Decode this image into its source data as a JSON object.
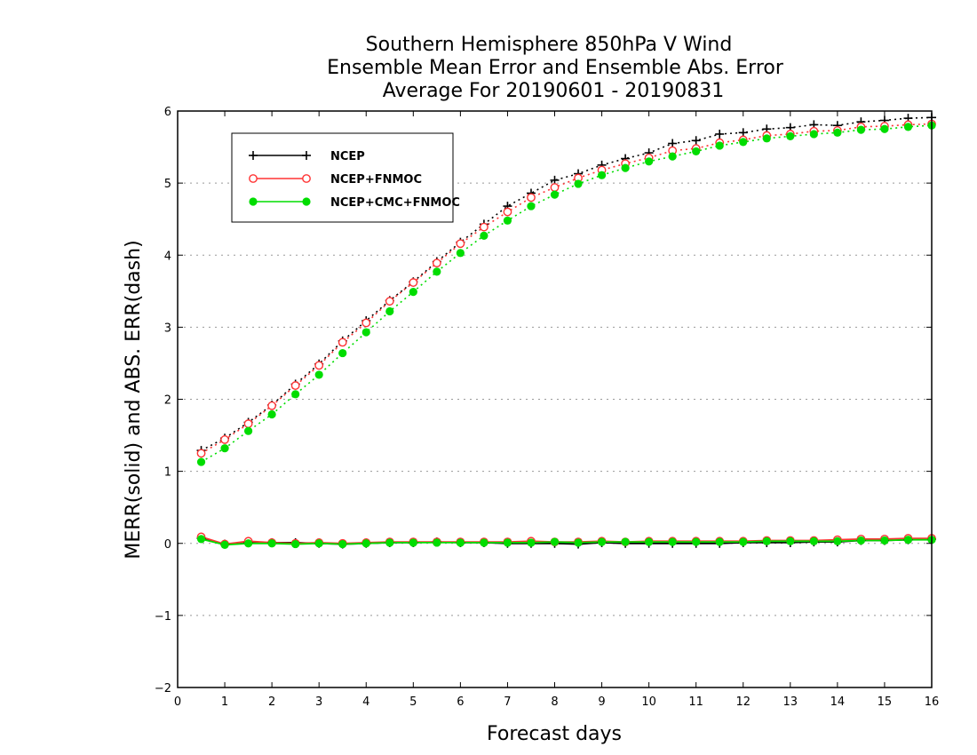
{
  "chart_data": {
    "type": "line",
    "title": [
      "Southern Hemisphere 850hPa V Wind",
      "Ensemble Mean Error and Ensemble Abs. Error",
      "Average For 20190601 - 20190831"
    ],
    "xlabel": "Forecast days",
    "ylabel": "MERR(solid) and ABS. ERR(dash)",
    "xlim": [
      0,
      16
    ],
    "ylim": [
      -2,
      6
    ],
    "xticks": [
      "0",
      "1",
      "2",
      "3",
      "4",
      "5",
      "6",
      "7",
      "8",
      "9",
      "10",
      "11",
      "12",
      "13",
      "14",
      "15",
      "16"
    ],
    "yticks": [
      "-2",
      "-1",
      "0",
      "1",
      "2",
      "3",
      "4",
      "5",
      "6"
    ],
    "grid": "horizontal dotted",
    "legend_position": "top-left",
    "x": [
      0.5,
      1,
      1.5,
      2,
      2.5,
      3,
      3.5,
      4,
      4.5,
      5,
      5.5,
      6,
      6.5,
      7,
      7.5,
      8,
      8.5,
      9,
      9.5,
      10,
      10.5,
      11,
      11.5,
      12,
      12.5,
      13,
      13.5,
      14,
      14.5,
      15,
      15.5,
      16
    ],
    "series": [
      {
        "name": "NCEP",
        "color": "#000000",
        "marker": "plus",
        "abs_err": [
          1.29,
          1.46,
          1.68,
          1.92,
          2.21,
          2.49,
          2.81,
          3.09,
          3.37,
          3.63,
          3.91,
          4.18,
          4.43,
          4.68,
          4.86,
          5.04,
          5.13,
          5.25,
          5.34,
          5.42,
          5.55,
          5.59,
          5.68,
          5.7,
          5.75,
          5.77,
          5.81,
          5.8,
          5.85,
          5.87,
          5.9,
          5.91
        ],
        "mean_err": [
          0.07,
          -0.01,
          0.01,
          0.01,
          0.01,
          0.0,
          -0.01,
          0.0,
          0.01,
          0.01,
          0.02,
          0.01,
          0.01,
          0.0,
          0.0,
          0.0,
          -0.01,
          0.01,
          0.0,
          0.0,
          0.0,
          0.0,
          0.0,
          0.01,
          0.01,
          0.01,
          0.02,
          0.02,
          0.04,
          0.04,
          0.05,
          0.06
        ]
      },
      {
        "name": "NCEP+FNMOC",
        "color": "#ff3333",
        "marker": "open-circle",
        "abs_err": [
          1.25,
          1.44,
          1.66,
          1.91,
          2.19,
          2.47,
          2.79,
          3.06,
          3.36,
          3.62,
          3.89,
          4.16,
          4.39,
          4.6,
          4.8,
          4.94,
          5.07,
          5.18,
          5.27,
          5.35,
          5.45,
          5.48,
          5.56,
          5.6,
          5.66,
          5.68,
          5.72,
          5.73,
          5.78,
          5.79,
          5.81,
          5.82
        ],
        "mean_err": [
          0.09,
          -0.01,
          0.03,
          0.01,
          0.0,
          0.01,
          0.0,
          0.01,
          0.02,
          0.02,
          0.02,
          0.02,
          0.02,
          0.02,
          0.03,
          0.02,
          0.02,
          0.03,
          0.02,
          0.03,
          0.03,
          0.03,
          0.03,
          0.03,
          0.04,
          0.04,
          0.04,
          0.05,
          0.06,
          0.06,
          0.07,
          0.07
        ]
      },
      {
        "name": "NCEP+CMC+FNMOC",
        "color": "#00dd00",
        "marker": "filled-circle",
        "abs_err": [
          1.13,
          1.32,
          1.56,
          1.79,
          2.07,
          2.34,
          2.64,
          2.93,
          3.22,
          3.49,
          3.77,
          4.03,
          4.27,
          4.48,
          4.68,
          4.84,
          4.99,
          5.11,
          5.21,
          5.3,
          5.37,
          5.44,
          5.52,
          5.57,
          5.62,
          5.65,
          5.68,
          5.7,
          5.74,
          5.75,
          5.78,
          5.8
        ],
        "mean_err": [
          0.06,
          -0.02,
          0.0,
          0.0,
          -0.01,
          0.0,
          -0.01,
          0.0,
          0.01,
          0.01,
          0.01,
          0.01,
          0.01,
          0.01,
          0.01,
          0.02,
          0.01,
          0.02,
          0.02,
          0.02,
          0.02,
          0.02,
          0.02,
          0.02,
          0.03,
          0.03,
          0.03,
          0.03,
          0.04,
          0.04,
          0.05,
          0.05
        ]
      }
    ]
  }
}
